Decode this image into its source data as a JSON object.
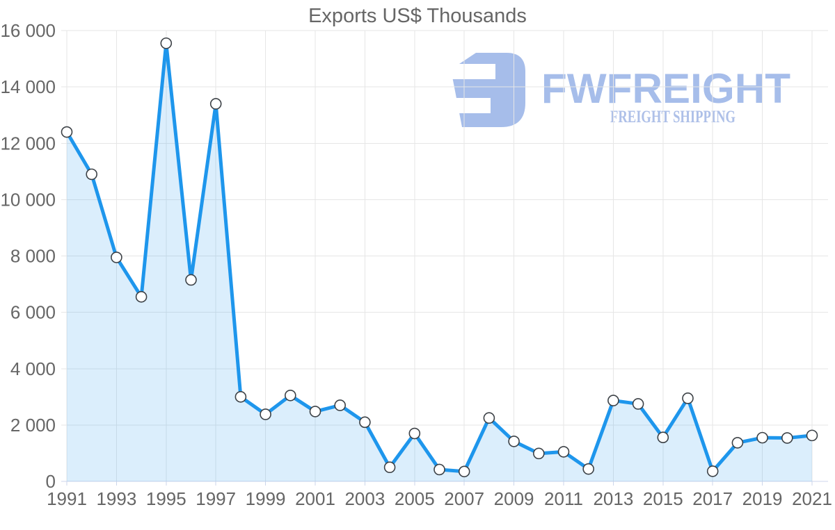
{
  "chart_data": {
    "type": "area",
    "title": "Exports US$ Thousands",
    "xlabel": "",
    "ylabel": "",
    "ylim": [
      0,
      16000
    ],
    "grid": true,
    "legend": false,
    "marker_style": "white-circle-dark-outline",
    "x_tick_labels": [
      "1991",
      "1993",
      "1995",
      "1997",
      "1999",
      "2001",
      "2003",
      "2005",
      "2007",
      "2009",
      "2011",
      "2013",
      "2015",
      "2017",
      "2019",
      "2021"
    ],
    "y_ticks": [
      {
        "value": 0,
        "label": "0"
      },
      {
        "value": 2000,
        "label": "2 000"
      },
      {
        "value": 4000,
        "label": "4 000"
      },
      {
        "value": 6000,
        "label": "6 000"
      },
      {
        "value": 8000,
        "label": "8 000"
      },
      {
        "value": 10000,
        "label": "10 000"
      },
      {
        "value": 12000,
        "label": "12 000"
      },
      {
        "value": 14000,
        "label": "14 000"
      },
      {
        "value": 16000,
        "label": "16 000"
      }
    ],
    "series": [
      {
        "name": "Exports US$ Thousands",
        "x": [
          1991,
          1992,
          1993,
          1994,
          1995,
          1996,
          1997,
          1998,
          1999,
          2000,
          2001,
          2002,
          2003,
          2004,
          2005,
          2006,
          2007,
          2008,
          2009,
          2010,
          2011,
          2012,
          2013,
          2014,
          2015,
          2016,
          2017,
          2018,
          2019,
          2020,
          2021
        ],
        "values": [
          12400,
          10900,
          7950,
          6550,
          15550,
          7150,
          13400,
          3000,
          2380,
          3050,
          2480,
          2700,
          2100,
          500,
          1700,
          420,
          350,
          2250,
          1420,
          990,
          1050,
          440,
          2870,
          2750,
          1560,
          2950,
          360,
          1370,
          1550,
          1540,
          1630
        ]
      }
    ]
  },
  "watermark": {
    "brand": "FWFREIGHT",
    "subtitle": "FREIGHT SHIPPING"
  },
  "colors": {
    "line": "#1e96ec",
    "area_fill": "rgba(30,150,236,0.16)",
    "marker_fill": "#ffffff",
    "marker_stroke": "#3c4146",
    "gridline": "#e6e6e6",
    "axis_line": "#ccd6eb",
    "label": "#666666",
    "title": "#666666",
    "watermark": "#a6bdea",
    "watermark_subtitle": "#aec0e8"
  }
}
